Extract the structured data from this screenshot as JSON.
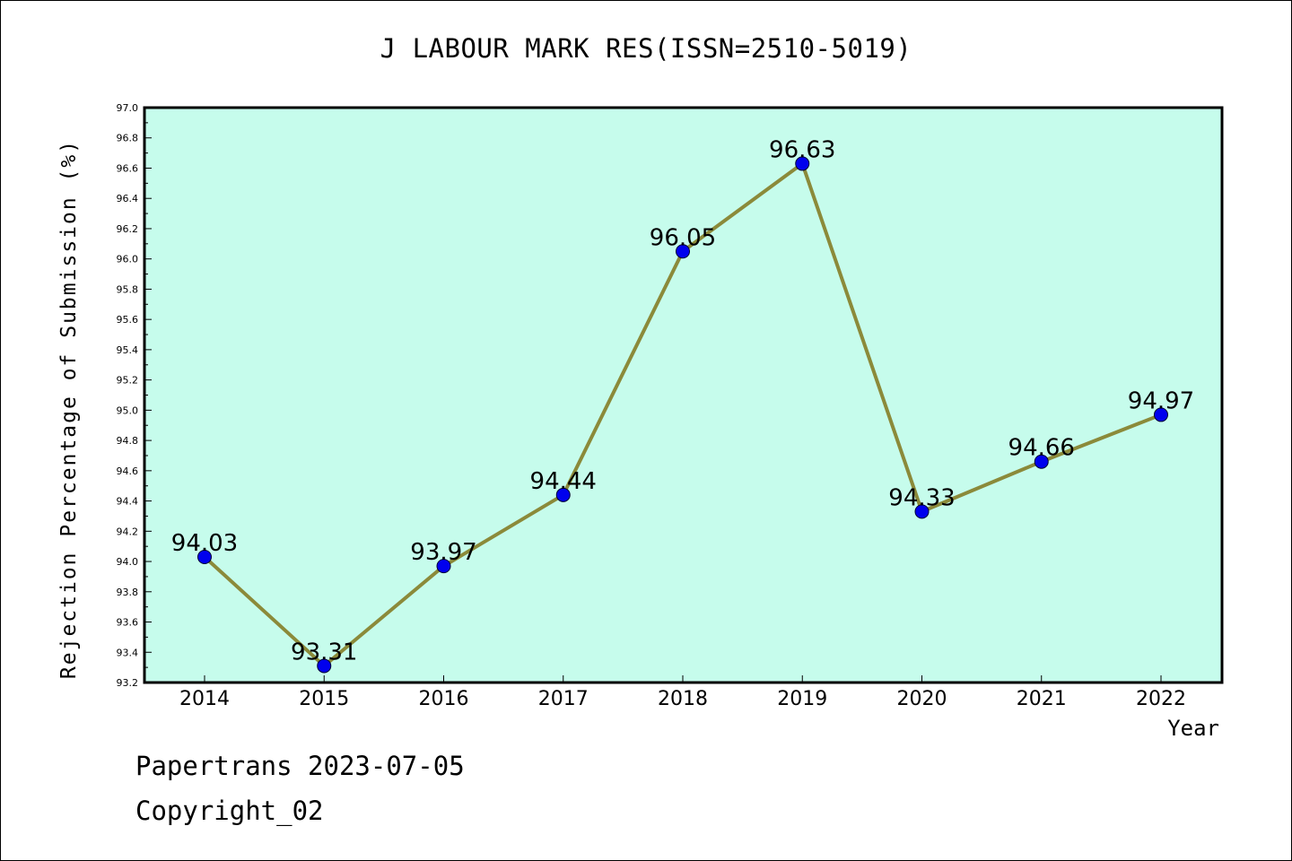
{
  "chart_data": {
    "type": "line",
    "title": "J LABOUR MARK RES(ISSN=2510-5019)",
    "xlabel": "Year",
    "ylabel": "Rejection Percentage of Submission (%)",
    "categories": [
      "2014",
      "2015",
      "2016",
      "2017",
      "2018",
      "2019",
      "2020",
      "2021",
      "2022"
    ],
    "values": [
      94.03,
      93.31,
      93.97,
      94.44,
      96.05,
      96.63,
      94.33,
      94.66,
      94.97
    ],
    "data_labels": [
      "94.03",
      "93.31",
      "93.97",
      "94.44",
      "96.05",
      "96.63",
      "94.33",
      "94.66",
      "94.97"
    ],
    "ylim": [
      93.2,
      97.0
    ],
    "yticks": [
      "93.2",
      "93.4",
      "93.6",
      "93.8",
      "94.0",
      "94.2",
      "94.4",
      "94.6",
      "94.8",
      "95.0",
      "95.2",
      "95.4",
      "95.6",
      "95.8",
      "96.0",
      "96.2",
      "96.4",
      "96.6",
      "96.8",
      "97.0"
    ],
    "grid": false,
    "colors": {
      "plot_background": "#c6fcec",
      "line": "#8b8a3a",
      "marker": "#0000ee"
    }
  },
  "footer": {
    "line1": "Papertrans 2023-07-05",
    "line2": "Copyright_02"
  }
}
